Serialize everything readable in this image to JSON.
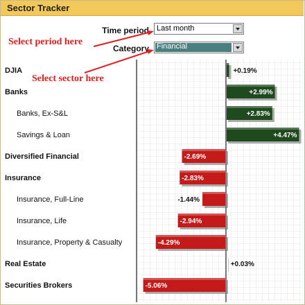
{
  "header": {
    "title": "Sector Tracker"
  },
  "controls": {
    "time_period_label": "Time period",
    "time_period_value": "Last month",
    "category_label": "Category",
    "category_value": "Financial"
  },
  "annotations": {
    "period": "Select period here",
    "sector": "Select sector here"
  },
  "colors": {
    "positive_bar": "#1e4a1e",
    "negative_bar": "#c41a1a",
    "header": "#f3c85a",
    "annotation": "#e02020"
  },
  "chart_data": {
    "type": "bar",
    "orientation": "horizontal",
    "unit": "%",
    "xlim": [
      -5.5,
      5.0
    ],
    "grid": true,
    "rows": [
      {
        "label": "DJIA",
        "value": 0.19,
        "display": "+0.19%",
        "level": 0
      },
      {
        "label": "Banks",
        "value": 2.99,
        "display": "+2.99%",
        "level": 0
      },
      {
        "label": "Banks, Ex-S&L",
        "value": 2.83,
        "display": "+2.83%",
        "level": 1
      },
      {
        "label": "Savings & Loan",
        "value": 4.47,
        "display": "+4.47%",
        "level": 1
      },
      {
        "label": "Diversified Financial",
        "value": -2.69,
        "display": "-2.69%",
        "level": 0
      },
      {
        "label": "Insurance",
        "value": -2.83,
        "display": "-2.83%",
        "level": 0
      },
      {
        "label": "Insurance, Full-Line",
        "value": -1.44,
        "display": "-1.44%",
        "level": 1
      },
      {
        "label": "Insurance, Life",
        "value": -2.94,
        "display": "-2.94%",
        "level": 1
      },
      {
        "label": "Insurance, Property & Casualty",
        "value": -4.29,
        "display": "-4.29%",
        "level": 1
      },
      {
        "label": "Real Estate",
        "value": 0.03,
        "display": "+0.03%",
        "level": 0
      },
      {
        "label": "Securities Brokers",
        "value": -5.06,
        "display": "-5.06%",
        "level": 0
      }
    ]
  }
}
